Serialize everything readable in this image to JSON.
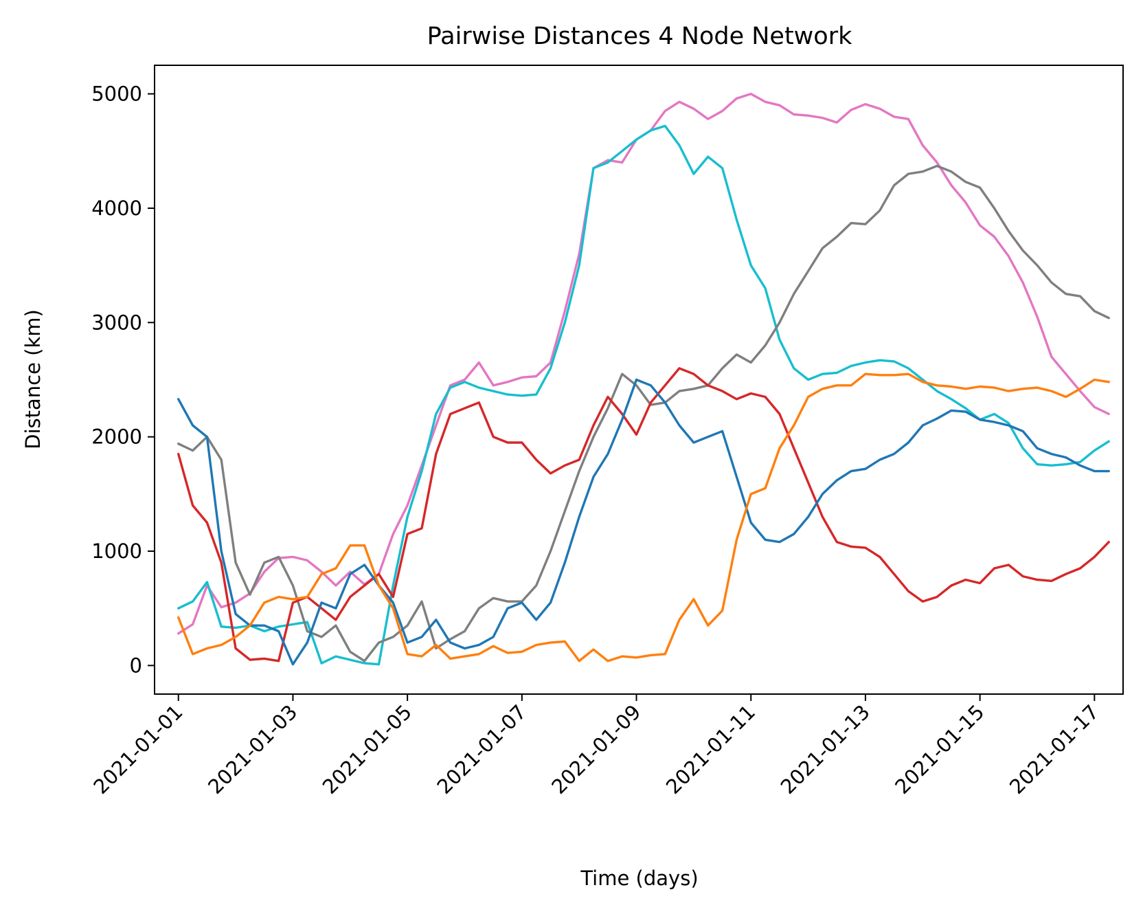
{
  "chart_data": {
    "type": "line",
    "title": "Pairwise Distances 4 Node Network",
    "xlabel": "Time (days)",
    "ylabel": "Distance (km)",
    "xlim": [
      "2020-12-31T14:00",
      "2021-01-17T12:00"
    ],
    "ylim": [
      -250,
      5250
    ],
    "x_ticks": [
      "2021-01-01",
      "2021-01-03",
      "2021-01-05",
      "2021-01-07",
      "2021-01-09",
      "2021-01-11",
      "2021-01-13",
      "2021-01-15",
      "2021-01-17"
    ],
    "y_ticks": [
      0,
      1000,
      2000,
      3000,
      4000,
      5000
    ],
    "grid": false,
    "legend": "none",
    "series": [
      {
        "color": "#e377c2",
        "x": [
          "2021-01-01T00:00",
          "2021-01-01T06:00",
          "2021-01-01T12:00",
          "2021-01-01T18:00",
          "2021-01-02T00:00",
          "2021-01-02T06:00",
          "2021-01-02T12:00",
          "2021-01-02T18:00",
          "2021-01-03T00:00",
          "2021-01-03T06:00",
          "2021-01-03T12:00",
          "2021-01-03T18:00",
          "2021-01-04T00:00",
          "2021-01-04T06:00",
          "2021-01-04T12:00",
          "2021-01-04T18:00",
          "2021-01-05T00:00",
          "2021-01-05T06:00",
          "2021-01-05T12:00",
          "2021-01-05T18:00",
          "2021-01-06T00:00",
          "2021-01-06T06:00",
          "2021-01-06T12:00",
          "2021-01-06T18:00",
          "2021-01-07T00:00",
          "2021-01-07T06:00",
          "2021-01-07T12:00",
          "2021-01-07T18:00",
          "2021-01-08T00:00",
          "2021-01-08T06:00",
          "2021-01-08T12:00",
          "2021-01-08T18:00",
          "2021-01-09T00:00",
          "2021-01-09T06:00",
          "2021-01-09T12:00",
          "2021-01-09T18:00",
          "2021-01-10T00:00",
          "2021-01-10T06:00",
          "2021-01-10T12:00",
          "2021-01-10T18:00",
          "2021-01-11T00:00",
          "2021-01-11T06:00",
          "2021-01-11T12:00",
          "2021-01-11T18:00",
          "2021-01-12T00:00",
          "2021-01-12T06:00",
          "2021-01-12T12:00",
          "2021-01-12T18:00",
          "2021-01-13T00:00",
          "2021-01-13T06:00",
          "2021-01-13T12:00",
          "2021-01-13T18:00",
          "2021-01-14T00:00",
          "2021-01-14T06:00",
          "2021-01-14T12:00",
          "2021-01-14T18:00",
          "2021-01-15T00:00",
          "2021-01-15T06:00",
          "2021-01-15T12:00",
          "2021-01-15T18:00",
          "2021-01-16T00:00",
          "2021-01-16T06:00",
          "2021-01-16T12:00",
          "2021-01-16T18:00",
          "2021-01-17T00:00",
          "2021-01-17T06:00"
        ],
        "y": [
          280,
          360,
          700,
          510,
          550,
          630,
          820,
          940,
          950,
          920,
          820,
          700,
          820,
          710,
          800,
          1150,
          1400,
          1750,
          2100,
          2450,
          2500,
          2650,
          2450,
          2480,
          2520,
          2530,
          2650,
          3100,
          3600,
          4350,
          4420,
          4400,
          4600,
          4680,
          4850,
          4930,
          4870,
          4780,
          4850,
          4960,
          5000,
          4930,
          4900,
          4820,
          4810,
          4790,
          4750,
          4860,
          4910,
          4870,
          4800,
          4780,
          4550,
          4400,
          4200,
          4050,
          3850,
          3750,
          3580,
          3350,
          3050,
          2700,
          2550,
          2400,
          2260,
          2200
        ]
      },
      {
        "color": "#17becf",
        "x": [
          "2021-01-01T00:00",
          "2021-01-01T06:00",
          "2021-01-01T12:00",
          "2021-01-01T18:00",
          "2021-01-02T00:00",
          "2021-01-02T06:00",
          "2021-01-02T12:00",
          "2021-01-02T18:00",
          "2021-01-03T00:00",
          "2021-01-03T06:00",
          "2021-01-03T12:00",
          "2021-01-03T18:00",
          "2021-01-04T00:00",
          "2021-01-04T06:00",
          "2021-01-04T12:00",
          "2021-01-04T18:00",
          "2021-01-05T00:00",
          "2021-01-05T06:00",
          "2021-01-05T12:00",
          "2021-01-05T18:00",
          "2021-01-06T00:00",
          "2021-01-06T06:00",
          "2021-01-06T12:00",
          "2021-01-06T18:00",
          "2021-01-07T00:00",
          "2021-01-07T06:00",
          "2021-01-07T12:00",
          "2021-01-07T18:00",
          "2021-01-08T00:00",
          "2021-01-08T06:00",
          "2021-01-08T12:00",
          "2021-01-08T18:00",
          "2021-01-09T00:00",
          "2021-01-09T06:00",
          "2021-01-09T12:00",
          "2021-01-09T18:00",
          "2021-01-10T00:00",
          "2021-01-10T06:00",
          "2021-01-10T12:00",
          "2021-01-10T18:00",
          "2021-01-11T00:00",
          "2021-01-11T06:00",
          "2021-01-11T12:00",
          "2021-01-11T18:00",
          "2021-01-12T00:00",
          "2021-01-12T06:00",
          "2021-01-12T12:00",
          "2021-01-12T18:00",
          "2021-01-13T00:00",
          "2021-01-13T06:00",
          "2021-01-13T12:00",
          "2021-01-13T18:00",
          "2021-01-14T00:00",
          "2021-01-14T06:00",
          "2021-01-14T12:00",
          "2021-01-14T18:00",
          "2021-01-15T00:00",
          "2021-01-15T06:00",
          "2021-01-15T12:00",
          "2021-01-15T18:00",
          "2021-01-16T00:00",
          "2021-01-16T06:00",
          "2021-01-16T12:00",
          "2021-01-16T18:00",
          "2021-01-17T00:00",
          "2021-01-17T06:00"
        ],
        "y": [
          500,
          560,
          730,
          340,
          330,
          350,
          300,
          340,
          360,
          380,
          20,
          80,
          50,
          20,
          10,
          700,
          1300,
          1700,
          2200,
          2430,
          2480,
          2430,
          2400,
          2370,
          2360,
          2370,
          2600,
          3000,
          3500,
          4350,
          4400,
          4500,
          4600,
          4680,
          4720,
          4550,
          4300,
          4450,
          4350,
          3900,
          3500,
          3300,
          2850,
          2600,
          2500,
          2550,
          2560,
          2620,
          2650,
          2670,
          2660,
          2600,
          2500,
          2400,
          2330,
          2250,
          2150,
          2200,
          2120,
          1900,
          1760,
          1750,
          1760,
          1780,
          1880,
          1960
        ]
      },
      {
        "color": "#7f7f7f",
        "x": [
          "2021-01-01T00:00",
          "2021-01-01T06:00",
          "2021-01-01T12:00",
          "2021-01-01T18:00",
          "2021-01-02T00:00",
          "2021-01-02T06:00",
          "2021-01-02T12:00",
          "2021-01-02T18:00",
          "2021-01-03T00:00",
          "2021-01-03T06:00",
          "2021-01-03T12:00",
          "2021-01-03T18:00",
          "2021-01-04T00:00",
          "2021-01-04T06:00",
          "2021-01-04T12:00",
          "2021-01-04T18:00",
          "2021-01-05T00:00",
          "2021-01-05T06:00",
          "2021-01-05T12:00",
          "2021-01-05T18:00",
          "2021-01-06T00:00",
          "2021-01-06T06:00",
          "2021-01-06T12:00",
          "2021-01-06T18:00",
          "2021-01-07T00:00",
          "2021-01-07T06:00",
          "2021-01-07T12:00",
          "2021-01-07T18:00",
          "2021-01-08T00:00",
          "2021-01-08T06:00",
          "2021-01-08T12:00",
          "2021-01-08T18:00",
          "2021-01-09T00:00",
          "2021-01-09T06:00",
          "2021-01-09T12:00",
          "2021-01-09T18:00",
          "2021-01-10T00:00",
          "2021-01-10T06:00",
          "2021-01-10T12:00",
          "2021-01-10T18:00",
          "2021-01-11T00:00",
          "2021-01-11T06:00",
          "2021-01-11T12:00",
          "2021-01-11T18:00",
          "2021-01-12T00:00",
          "2021-01-12T06:00",
          "2021-01-12T12:00",
          "2021-01-12T18:00",
          "2021-01-13T00:00",
          "2021-01-13T06:00",
          "2021-01-13T12:00",
          "2021-01-13T18:00",
          "2021-01-14T00:00",
          "2021-01-14T06:00",
          "2021-01-14T12:00",
          "2021-01-14T18:00",
          "2021-01-15T00:00",
          "2021-01-15T06:00",
          "2021-01-15T12:00",
          "2021-01-15T18:00",
          "2021-01-16T00:00",
          "2021-01-16T06:00",
          "2021-01-16T12:00",
          "2021-01-16T18:00",
          "2021-01-17T00:00",
          "2021-01-17T06:00"
        ],
        "y": [
          1940,
          1880,
          2000,
          1800,
          900,
          620,
          900,
          950,
          700,
          300,
          250,
          350,
          120,
          40,
          200,
          250,
          350,
          560,
          150,
          230,
          300,
          500,
          590,
          560,
          560,
          700,
          1000,
          1350,
          1700,
          2000,
          2250,
          2550,
          2450,
          2280,
          2300,
          2400,
          2420,
          2450,
          2600,
          2720,
          2650,
          2800,
          3000,
          3250,
          3450,
          3650,
          3750,
          3870,
          3860,
          3980,
          4200,
          4300,
          4320,
          4370,
          4320,
          4230,
          4180,
          4000,
          3800,
          3630,
          3500,
          3350,
          3250,
          3230,
          3100,
          3040
        ]
      },
      {
        "color": "#d62728",
        "x": [
          "2021-01-01T00:00",
          "2021-01-01T06:00",
          "2021-01-01T12:00",
          "2021-01-01T18:00",
          "2021-01-02T00:00",
          "2021-01-02T06:00",
          "2021-01-02T12:00",
          "2021-01-02T18:00",
          "2021-01-03T00:00",
          "2021-01-03T06:00",
          "2021-01-03T12:00",
          "2021-01-03T18:00",
          "2021-01-04T00:00",
          "2021-01-04T06:00",
          "2021-01-04T12:00",
          "2021-01-04T18:00",
          "2021-01-05T00:00",
          "2021-01-05T06:00",
          "2021-01-05T12:00",
          "2021-01-05T18:00",
          "2021-01-06T00:00",
          "2021-01-06T06:00",
          "2021-01-06T12:00",
          "2021-01-06T18:00",
          "2021-01-07T00:00",
          "2021-01-07T06:00",
          "2021-01-07T12:00",
          "2021-01-07T18:00",
          "2021-01-08T00:00",
          "2021-01-08T06:00",
          "2021-01-08T12:00",
          "2021-01-08T18:00",
          "2021-01-09T00:00",
          "2021-01-09T06:00",
          "2021-01-09T12:00",
          "2021-01-09T18:00",
          "2021-01-10T00:00",
          "2021-01-10T06:00",
          "2021-01-10T12:00",
          "2021-01-10T18:00",
          "2021-01-11T00:00",
          "2021-01-11T06:00",
          "2021-01-11T12:00",
          "2021-01-11T18:00",
          "2021-01-12T00:00",
          "2021-01-12T06:00",
          "2021-01-12T12:00",
          "2021-01-12T18:00",
          "2021-01-13T00:00",
          "2021-01-13T06:00",
          "2021-01-13T12:00",
          "2021-01-13T18:00",
          "2021-01-14T00:00",
          "2021-01-14T06:00",
          "2021-01-14T12:00",
          "2021-01-14T18:00",
          "2021-01-15T00:00",
          "2021-01-15T06:00",
          "2021-01-15T12:00",
          "2021-01-15T18:00",
          "2021-01-16T00:00",
          "2021-01-16T06:00",
          "2021-01-16T12:00",
          "2021-01-16T18:00",
          "2021-01-17T00:00",
          "2021-01-17T06:00"
        ],
        "y": [
          1850,
          1400,
          1250,
          900,
          150,
          50,
          60,
          40,
          550,
          600,
          500,
          400,
          600,
          700,
          800,
          600,
          1150,
          1200,
          1850,
          2200,
          2250,
          2300,
          2000,
          1950,
          1950,
          1800,
          1680,
          1750,
          1800,
          2100,
          2350,
          2200,
          2020,
          2300,
          2450,
          2600,
          2550,
          2450,
          2400,
          2330,
          2380,
          2350,
          2200,
          1900,
          1600,
          1300,
          1080,
          1040,
          1030,
          950,
          800,
          650,
          560,
          600,
          700,
          750,
          720,
          850,
          880,
          780,
          750,
          740,
          800,
          850,
          950,
          1080
        ]
      },
      {
        "color": "#1f77b4",
        "x": [
          "2021-01-01T00:00",
          "2021-01-01T06:00",
          "2021-01-01T12:00",
          "2021-01-01T18:00",
          "2021-01-02T00:00",
          "2021-01-02T06:00",
          "2021-01-02T12:00",
          "2021-01-02T18:00",
          "2021-01-03T00:00",
          "2021-01-03T06:00",
          "2021-01-03T12:00",
          "2021-01-03T18:00",
          "2021-01-04T00:00",
          "2021-01-04T06:00",
          "2021-01-04T12:00",
          "2021-01-04T18:00",
          "2021-01-05T00:00",
          "2021-01-05T06:00",
          "2021-01-05T12:00",
          "2021-01-05T18:00",
          "2021-01-06T00:00",
          "2021-01-06T06:00",
          "2021-01-06T12:00",
          "2021-01-06T18:00",
          "2021-01-07T00:00",
          "2021-01-07T06:00",
          "2021-01-07T12:00",
          "2021-01-07T18:00",
          "2021-01-08T00:00",
          "2021-01-08T06:00",
          "2021-01-08T12:00",
          "2021-01-08T18:00",
          "2021-01-09T00:00",
          "2021-01-09T06:00",
          "2021-01-09T12:00",
          "2021-01-09T18:00",
          "2021-01-10T00:00",
          "2021-01-10T06:00",
          "2021-01-10T12:00",
          "2021-01-10T18:00",
          "2021-01-11T00:00",
          "2021-01-11T06:00",
          "2021-01-11T12:00",
          "2021-01-11T18:00",
          "2021-01-12T00:00",
          "2021-01-12T06:00",
          "2021-01-12T12:00",
          "2021-01-12T18:00",
          "2021-01-13T00:00",
          "2021-01-13T06:00",
          "2021-01-13T12:00",
          "2021-01-13T18:00",
          "2021-01-14T00:00",
          "2021-01-14T06:00",
          "2021-01-14T12:00",
          "2021-01-14T18:00",
          "2021-01-15T00:00",
          "2021-01-15T06:00",
          "2021-01-15T12:00",
          "2021-01-15T18:00",
          "2021-01-16T00:00",
          "2021-01-16T06:00",
          "2021-01-16T12:00",
          "2021-01-16T18:00",
          "2021-01-17T00:00",
          "2021-01-17T06:00"
        ],
        "y": [
          2330,
          2100,
          2000,
          1000,
          450,
          350,
          350,
          300,
          10,
          200,
          550,
          500,
          800,
          880,
          700,
          550,
          200,
          250,
          400,
          200,
          150,
          180,
          250,
          500,
          550,
          400,
          550,
          900,
          1300,
          1650,
          1850,
          2150,
          2500,
          2450,
          2300,
          2100,
          1950,
          2000,
          2050,
          1650,
          1250,
          1100,
          1080,
          1150,
          1300,
          1500,
          1620,
          1700,
          1720,
          1800,
          1850,
          1950,
          2100,
          2160,
          2230,
          2220,
          2150,
          2130,
          2100,
          2050,
          1900,
          1850,
          1820,
          1750,
          1700,
          1700
        ]
      },
      {
        "color": "#ff7f0e",
        "x": [
          "2021-01-01T00:00",
          "2021-01-01T06:00",
          "2021-01-01T12:00",
          "2021-01-01T18:00",
          "2021-01-02T00:00",
          "2021-01-02T06:00",
          "2021-01-02T12:00",
          "2021-01-02T18:00",
          "2021-01-03T00:00",
          "2021-01-03T06:00",
          "2021-01-03T12:00",
          "2021-01-03T18:00",
          "2021-01-04T00:00",
          "2021-01-04T06:00",
          "2021-01-04T12:00",
          "2021-01-04T18:00",
          "2021-01-05T00:00",
          "2021-01-05T06:00",
          "2021-01-05T12:00",
          "2021-01-05T18:00",
          "2021-01-06T00:00",
          "2021-01-06T06:00",
          "2021-01-06T12:00",
          "2021-01-06T18:00",
          "2021-01-07T00:00",
          "2021-01-07T06:00",
          "2021-01-07T12:00",
          "2021-01-07T18:00",
          "2021-01-08T00:00",
          "2021-01-08T06:00",
          "2021-01-08T12:00",
          "2021-01-08T18:00",
          "2021-01-09T00:00",
          "2021-01-09T06:00",
          "2021-01-09T12:00",
          "2021-01-09T18:00",
          "2021-01-10T00:00",
          "2021-01-10T06:00",
          "2021-01-10T12:00",
          "2021-01-10T18:00",
          "2021-01-11T00:00",
          "2021-01-11T06:00",
          "2021-01-11T12:00",
          "2021-01-11T18:00",
          "2021-01-12T00:00",
          "2021-01-12T06:00",
          "2021-01-12T12:00",
          "2021-01-12T18:00",
          "2021-01-13T00:00",
          "2021-01-13T06:00",
          "2021-01-13T12:00",
          "2021-01-13T18:00",
          "2021-01-14T00:00",
          "2021-01-14T06:00",
          "2021-01-14T12:00",
          "2021-01-14T18:00",
          "2021-01-15T00:00",
          "2021-01-15T06:00",
          "2021-01-15T12:00",
          "2021-01-15T18:00",
          "2021-01-16T00:00",
          "2021-01-16T06:00",
          "2021-01-16T12:00",
          "2021-01-16T18:00",
          "2021-01-17T00:00",
          "2021-01-17T06:00"
        ],
        "y": [
          420,
          100,
          150,
          180,
          250,
          350,
          550,
          600,
          580,
          600,
          800,
          850,
          1050,
          1050,
          700,
          500,
          100,
          80,
          180,
          60,
          80,
          100,
          170,
          110,
          120,
          180,
          200,
          210,
          40,
          140,
          40,
          80,
          70,
          90,
          100,
          400,
          580,
          350,
          480,
          1100,
          1500,
          1550,
          1900,
          2100,
          2350,
          2420,
          2450,
          2450,
          2550,
          2540,
          2540,
          2550,
          2480,
          2450,
          2440,
          2420,
          2440,
          2430,
          2400,
          2420,
          2430,
          2400,
          2350,
          2420,
          2500,
          2480
        ]
      }
    ]
  }
}
